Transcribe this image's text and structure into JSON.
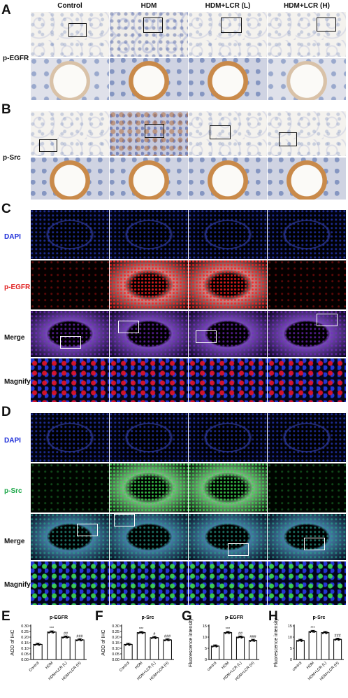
{
  "panels": {
    "A": "A",
    "B": "B",
    "C": "C",
    "D": "D",
    "E": "E",
    "F": "F",
    "G": "G",
    "H": "H"
  },
  "columns": [
    "Control",
    "HDM",
    "HDM+LCR (L)",
    "HDM+LCR (H)"
  ],
  "ihc_rows": {
    "A": "p-EGFR",
    "B": "p-Src"
  },
  "if_rows": {
    "C": [
      "DAPI",
      "p-EGFR",
      "Merge",
      "Magnify"
    ],
    "D": [
      "DAPI",
      "p-Src",
      "Merge",
      "Magnify"
    ]
  },
  "colors": {
    "dapi": "#1a2bd8",
    "egfr": "#e02020",
    "src": "#1ea84a"
  },
  "chart_data": [
    {
      "type": "bar",
      "panel": "E",
      "title": "p-EGFR",
      "ylabel": "AOD of IHC",
      "ylim": [
        0,
        0.3
      ],
      "yticks": [
        "0.00",
        "0.05",
        "0.10",
        "0.15",
        "0.20",
        "0.25",
        "0.30"
      ],
      "categories": [
        "Control",
        "HDM",
        "HDM+LCR (L)",
        "HDM+LCR (H)"
      ],
      "values": [
        0.135,
        0.245,
        0.2,
        0.175
      ],
      "sig": [
        "",
        "***",
        "##",
        "###"
      ]
    },
    {
      "type": "bar",
      "panel": "F",
      "title": "p-Src",
      "ylabel": "AOD of IHC",
      "ylim": [
        0,
        0.3
      ],
      "yticks": [
        "0.00",
        "0.05",
        "0.10",
        "0.15",
        "0.20",
        "0.25",
        "0.30"
      ],
      "categories": [
        "Control",
        "HDM",
        "HDM+LCR (L)",
        "HDM+LCR (H)"
      ],
      "values": [
        0.135,
        0.24,
        0.195,
        0.175
      ],
      "sig": [
        "",
        "***",
        "#",
        "###"
      ]
    },
    {
      "type": "bar",
      "panel": "G",
      "title": "p-EGFR",
      "ylabel": "Fluorescence intensity",
      "ylim": [
        0,
        15
      ],
      "yticks": [
        "0",
        "5",
        "10",
        "15"
      ],
      "categories": [
        "control",
        "HDM",
        "HDM+LCR (L)",
        "HDM+LCR (H)"
      ],
      "values": [
        6.0,
        12.0,
        10.0,
        8.5
      ],
      "sig": [
        "",
        "***",
        "##",
        "###"
      ]
    },
    {
      "type": "bar",
      "panel": "H",
      "title": "p-Src",
      "ylabel": "Fluorescence intensity",
      "ylim": [
        0,
        15
      ],
      "yticks": [
        "0",
        "5",
        "10",
        "15"
      ],
      "categories": [
        "control",
        "HDM",
        "HDM+LCR (L)",
        "HDM+LCR (H)"
      ],
      "values": [
        8.5,
        12.5,
        12.0,
        9.0
      ],
      "sig": [
        "",
        "***",
        "",
        "###"
      ]
    }
  ]
}
